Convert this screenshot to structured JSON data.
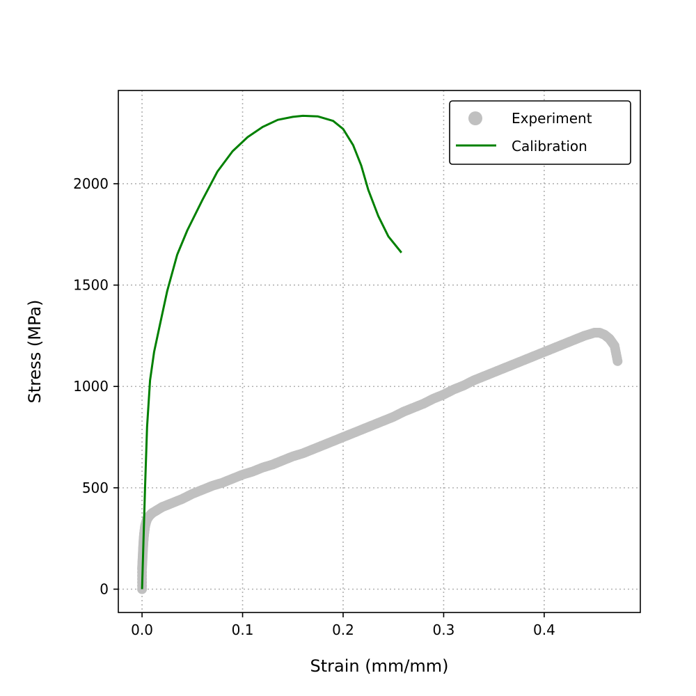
{
  "chart_data": {
    "type": "line",
    "xlabel": "Strain (mm/mm)",
    "ylabel": "Stress (MPa)",
    "xlim": [
      -0.0236,
      0.4956
    ],
    "ylim": [
      -115,
      2460
    ],
    "xticks": [
      0.0,
      0.1,
      0.2,
      0.3,
      0.4
    ],
    "xtick_labels": [
      "0.0",
      "0.1",
      "0.2",
      "0.3",
      "0.4"
    ],
    "yticks": [
      0,
      500,
      1000,
      1500,
      2000
    ],
    "ytick_labels": [
      "0",
      "500",
      "1000",
      "1500",
      "2000"
    ],
    "grid": true,
    "legend_position": "upper-right",
    "series": [
      {
        "name": "Experiment",
        "kind": "scatter",
        "color": "#c0c0c0",
        "x": [
          0.0,
          0.0,
          0.0005,
          0.001,
          0.0015,
          0.002,
          0.0025,
          0.003,
          0.004,
          0.005,
          0.007,
          0.01,
          0.015,
          0.02,
          0.025,
          0.03,
          0.04,
          0.05,
          0.06,
          0.07,
          0.08,
          0.09,
          0.1,
          0.11,
          0.12,
          0.13,
          0.14,
          0.15,
          0.16,
          0.17,
          0.18,
          0.19,
          0.2,
          0.21,
          0.22,
          0.23,
          0.24,
          0.25,
          0.26,
          0.27,
          0.28,
          0.29,
          0.3,
          0.31,
          0.32,
          0.33,
          0.34,
          0.35,
          0.36,
          0.37,
          0.38,
          0.39,
          0.4,
          0.41,
          0.42,
          0.43,
          0.44,
          0.45,
          0.455,
          0.46,
          0.465,
          0.47,
          0.473
        ],
        "y": [
          0,
          100,
          150,
          200,
          240,
          270,
          290,
          310,
          330,
          345,
          360,
          375,
          390,
          405,
          415,
          425,
          445,
          470,
          490,
          510,
          525,
          545,
          565,
          580,
          600,
          615,
          635,
          655,
          670,
          690,
          710,
          730,
          750,
          770,
          790,
          810,
          830,
          850,
          875,
          895,
          915,
          940,
          960,
          985,
          1005,
          1030,
          1050,
          1070,
          1090,
          1110,
          1130,
          1150,
          1170,
          1190,
          1210,
          1230,
          1250,
          1265,
          1265,
          1255,
          1235,
          1200,
          1125
        ]
      },
      {
        "name": "Calibration",
        "kind": "line",
        "color": "#008000",
        "x": [
          0.0,
          0.003,
          0.005,
          0.008,
          0.012,
          0.018,
          0.025,
          0.035,
          0.045,
          0.06,
          0.075,
          0.09,
          0.105,
          0.12,
          0.135,
          0.15,
          0.16,
          0.175,
          0.19,
          0.2,
          0.21,
          0.218,
          0.225,
          0.235,
          0.245,
          0.258
        ],
        "y": [
          0,
          500,
          800,
          1030,
          1170,
          1310,
          1470,
          1650,
          1770,
          1920,
          2060,
          2160,
          2230,
          2280,
          2315,
          2330,
          2335,
          2332,
          2310,
          2270,
          2190,
          2090,
          1970,
          1840,
          1740,
          1660
        ]
      }
    ]
  }
}
